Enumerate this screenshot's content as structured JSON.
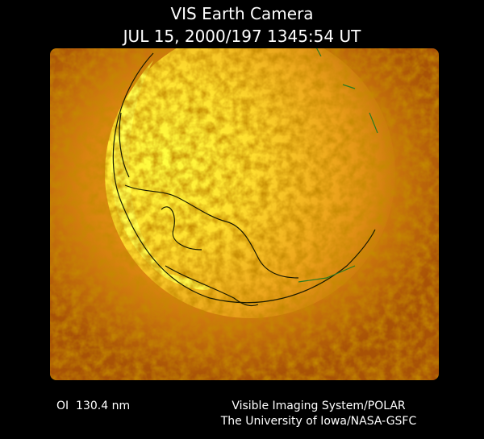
{
  "header": {
    "title": "VIS Earth Camera",
    "timestamp": "JUL 15, 2000/197 1345:54 UT"
  },
  "footer": {
    "wavelength": "OI  130.4 nm",
    "instrument": "Visible Imaging System/POLAR",
    "institution": "The University of Iowa/NASA-GSFC"
  }
}
